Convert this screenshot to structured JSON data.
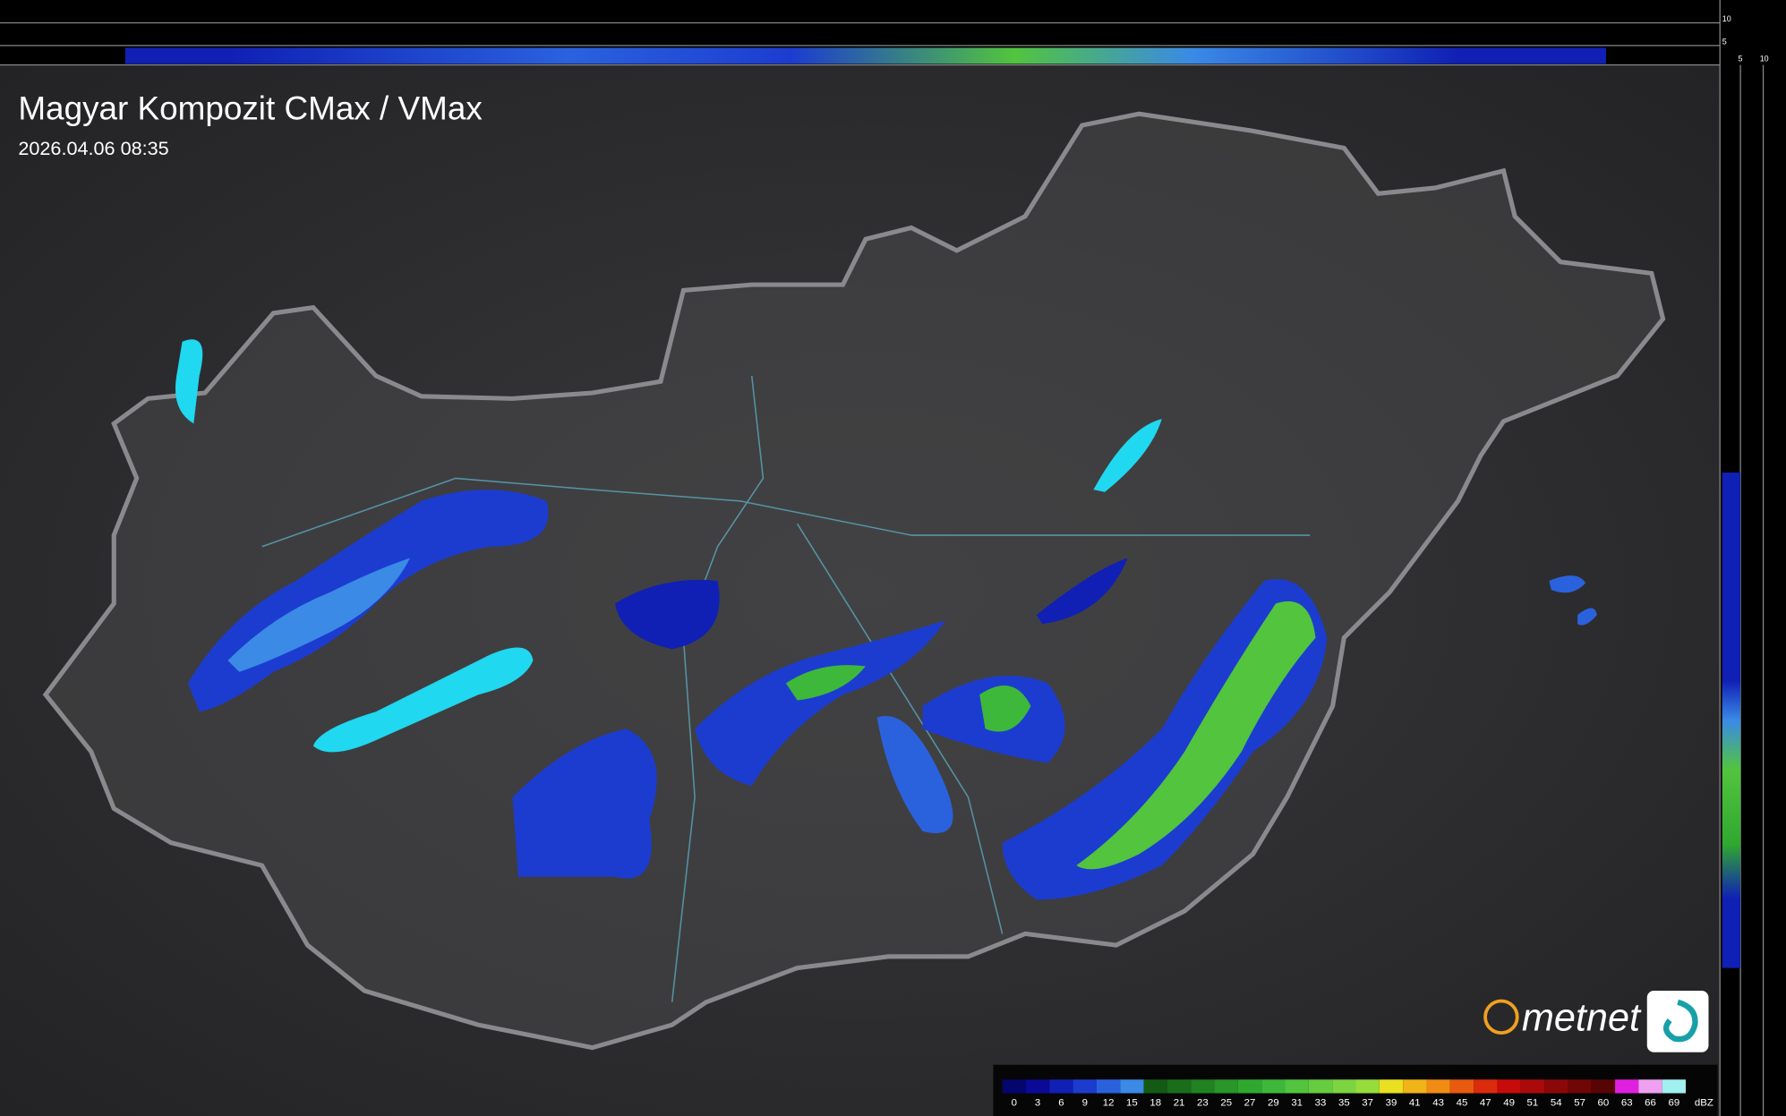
{
  "header": {
    "title": "Magyar Kompozit CMax / VMax",
    "timestamp": "2026.04.06 08:35"
  },
  "logo": {
    "text": "metnet"
  },
  "profile_ticks": {
    "top": [
      "10",
      "5"
    ],
    "right": [
      "5",
      "10"
    ]
  },
  "legend": {
    "unit": "dBZ",
    "levels": [
      0,
      3,
      6,
      9,
      12,
      15,
      18,
      21,
      23,
      25,
      27,
      29,
      31,
      33,
      35,
      37,
      39,
      41,
      43,
      45,
      47,
      49,
      51,
      54,
      57,
      60,
      63,
      66,
      69
    ],
    "colors": [
      "#05056e",
      "#0a0a96",
      "#1020b4",
      "#1c3cd0",
      "#2a62de",
      "#3a8ae6",
      "#145a14",
      "#1a6e1a",
      "#208220",
      "#289628",
      "#30a830",
      "#3eb83a",
      "#52c43e",
      "#66cc40",
      "#7cd440",
      "#96dc3c",
      "#e8e020",
      "#f0b418",
      "#f08c14",
      "#e85a10",
      "#dc2a0c",
      "#c80a0a",
      "#aa0a0a",
      "#8c0808",
      "#700606",
      "#560404",
      "#e020e0",
      "#f0a0f0",
      "#a0f0f0"
    ]
  }
}
